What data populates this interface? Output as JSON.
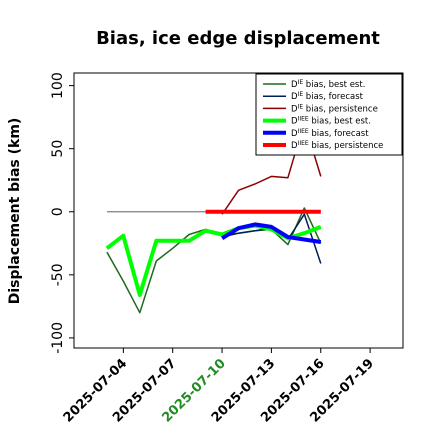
{
  "chart_data": {
    "type": "line",
    "title": "Bias, ice edge displacement",
    "xlabel": "",
    "ylabel": "Displacement bias (km)",
    "xlim": [
      "2025-07-01",
      "2025-07-21"
    ],
    "ylim": [
      -108,
      110
    ],
    "yticks": [
      -100,
      -50,
      0,
      50,
      100
    ],
    "xticks": [
      "2025-07-04",
      "2025-07-07",
      "2025-07-10",
      "2025-07-13",
      "2025-07-16",
      "2025-07-19"
    ],
    "xtick_colors": [
      "#000000",
      "#000000",
      "#228b22",
      "#000000",
      "#000000",
      "#000000"
    ],
    "zero_line": {
      "x": [
        "2025-07-03",
        "2025-07-16"
      ],
      "y": 0,
      "color": "#7f7f7f"
    },
    "legend": {
      "placement": "top-right",
      "entries": [
        {
          "prefix": "D",
          "sup": "IE",
          "text": " bias, best est.",
          "color": "#1a6b1a",
          "width": 1.5
        },
        {
          "prefix": "D",
          "sup": "IE",
          "text": " bias, forecast",
          "color": "#001e5c",
          "width": 1.5
        },
        {
          "prefix": "D",
          "sup": "IE",
          "text": " bias, persistence",
          "color": "#8b0000",
          "width": 1.5
        },
        {
          "prefix": "D",
          "sup": "IIEE",
          "text": " bias, best est.",
          "color": "#00ff00",
          "width": 4
        },
        {
          "prefix": "D",
          "sup": "IIEE",
          "text": " bias, forecast",
          "color": "#0000ff",
          "width": 4
        },
        {
          "prefix": "D",
          "sup": "IIEE",
          "text": " bias, persistence",
          "color": "#ff0000",
          "width": 4
        }
      ]
    },
    "series": [
      {
        "color": "#1a6b1a",
        "width": 1.5,
        "x": [
          "2025-07-03",
          "2025-07-04",
          "2025-07-05",
          "2025-07-06",
          "2025-07-07",
          "2025-07-08",
          "2025-07-09",
          "2025-07-10",
          "2025-07-11",
          "2025-07-12",
          "2025-07-13",
          "2025-07-14",
          "2025-07-15",
          "2025-07-16"
        ],
        "y": [
          -32,
          -55,
          -80,
          -39,
          -29,
          -18,
          -14,
          -18,
          -17,
          -15,
          -14,
          -26,
          3,
          -25
        ]
      },
      {
        "color": "#001e5c",
        "width": 1.5,
        "x": [
          "2025-07-10",
          "2025-07-11",
          "2025-07-12",
          "2025-07-13",
          "2025-07-14",
          "2025-07-15",
          "2025-07-16"
        ],
        "y": [
          -20,
          -17,
          -15,
          -13,
          -22,
          -2,
          -41
        ]
      },
      {
        "color": "#8b0000",
        "width": 1.5,
        "x": [
          "2025-07-10",
          "2025-07-11",
          "2025-07-12",
          "2025-07-13",
          "2025-07-14",
          "2025-07-15",
          "2025-07-16"
        ],
        "y": [
          -2,
          17,
          22,
          28,
          27,
          71,
          28
        ]
      },
      {
        "color": "#00ff00",
        "width": 4,
        "x": [
          "2025-07-03",
          "2025-07-04",
          "2025-07-05",
          "2025-07-06",
          "2025-07-07",
          "2025-07-08",
          "2025-07-09",
          "2025-07-10",
          "2025-07-11",
          "2025-07-12",
          "2025-07-13",
          "2025-07-14",
          "2025-07-15",
          "2025-07-16"
        ],
        "y": [
          -29,
          -19,
          -66,
          -23,
          -23,
          -23,
          -15,
          -18,
          -13,
          -11,
          -14,
          -21,
          -17,
          -12
        ]
      },
      {
        "color": "#0000ff",
        "width": 4,
        "x": [
          "2025-07-10",
          "2025-07-11",
          "2025-07-12",
          "2025-07-13",
          "2025-07-14",
          "2025-07-15",
          "2025-07-16"
        ],
        "y": [
          -21,
          -13,
          -10,
          -12,
          -20,
          -22,
          -24
        ]
      },
      {
        "color": "#ff0000",
        "width": 4,
        "x": [
          "2025-07-09",
          "2025-07-10",
          "2025-07-11",
          "2025-07-12",
          "2025-07-13",
          "2025-07-14",
          "2025-07-15",
          "2025-07-16"
        ],
        "y": [
          0,
          0,
          0,
          0,
          0,
          0,
          0,
          0
        ]
      }
    ]
  }
}
